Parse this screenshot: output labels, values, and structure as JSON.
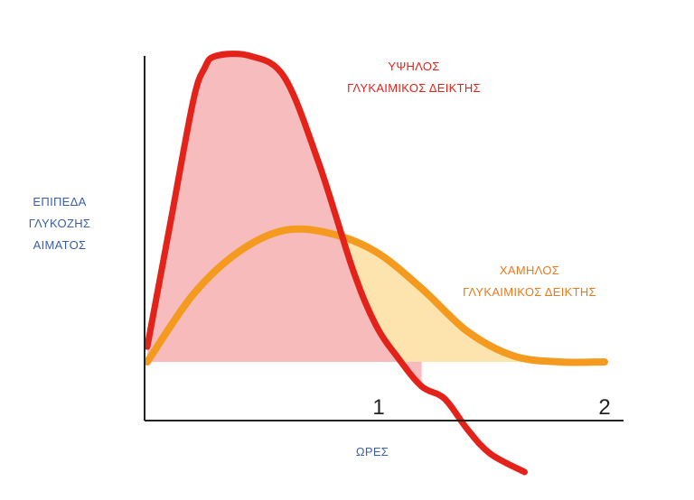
{
  "chart_data": {
    "type": "area",
    "title": "",
    "xlabel": "ΩΡΕΣ",
    "ylabel_lines": [
      "ΕΠΙΠΕΔΑ",
      "ΓΛΥΚΟΖΗΣ",
      "ΑΙΜΑΤΟΣ"
    ],
    "x_ticks": [
      "1",
      "2"
    ],
    "xlim": [
      0,
      2
    ],
    "y_axis_values": "none",
    "grid": false,
    "legend": "direct labels on curves",
    "colors": {
      "high_line": "#e32219",
      "high_fill": "#f5b8bb",
      "low_line": "#f39a1f",
      "low_fill": "#fde3ad",
      "axis": "#222222",
      "axis_title": "#3a5fa8"
    },
    "series": [
      {
        "label_lines": [
          "ΥΨΗΛΟΣ",
          "ΓΛΥΚΑΙΜΙΚΟΣ ΔΕΙΚΤΗΣ"
        ],
        "x": [
          0.0,
          0.1,
          0.2,
          0.25,
          0.3,
          0.45,
          0.6,
          0.75,
          0.9,
          1.0,
          1.1,
          1.2,
          1.3,
          1.4,
          1.5,
          1.65
        ],
        "y": [
          0.05,
          0.45,
          0.85,
          0.96,
          1.0,
          1.0,
          0.93,
          0.65,
          0.3,
          0.12,
          0.01,
          -0.08,
          -0.12,
          -0.22,
          -0.3,
          -0.36
        ]
      },
      {
        "label_lines": [
          "ΧΑΜΗΛΟΣ",
          "ΓΛΥΚΑΙΜΙΚΟΣ ΔΕΙΚΤΗΣ"
        ],
        "x": [
          0.0,
          0.2,
          0.4,
          0.6,
          0.8,
          1.0,
          1.2,
          1.4,
          1.6,
          1.8,
          2.0
        ],
        "y": [
          0.0,
          0.22,
          0.36,
          0.43,
          0.42,
          0.36,
          0.24,
          0.1,
          0.02,
          0.0,
          0.0
        ]
      }
    ]
  }
}
